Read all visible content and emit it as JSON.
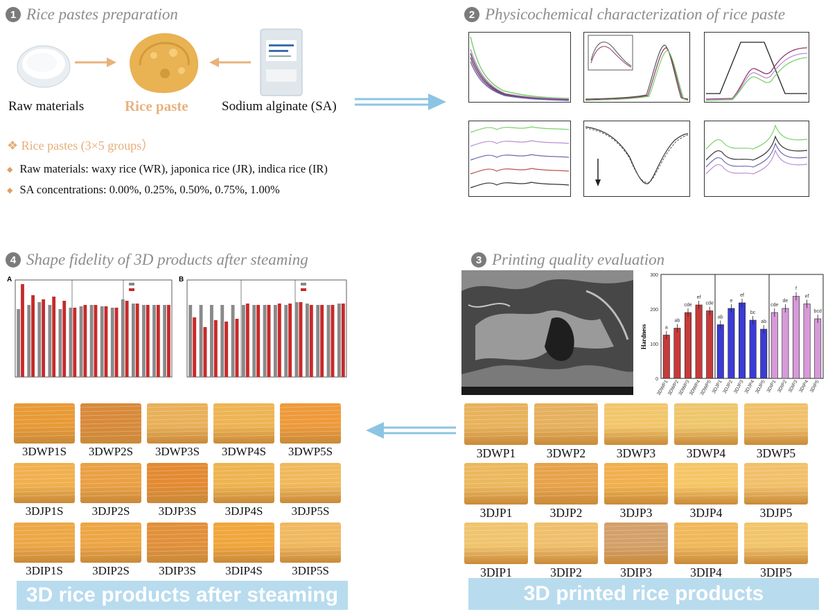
{
  "sections": {
    "s1": {
      "num": "1",
      "title": "Rice pastes preparation"
    },
    "s2": {
      "num": "2",
      "title": "Physicochemical characterization of rice paste"
    },
    "s3": {
      "num": "3",
      "title": "Printing quality evaluation"
    },
    "s4": {
      "num": "4",
      "title": "Shape fidelity of 3D products after steaming"
    }
  },
  "prep": {
    "raw_materials": "Raw materials",
    "rice_paste": "Rice paste",
    "sodium_alginate": "Sodium alginate (SA)",
    "groups_heading": "❖ Rice pastes (3×5 groups）",
    "bullet1": "Raw materials: waxy rice (WR), japonica rice (JR), indica rice (IR)",
    "bullet2": "SA concentrations: 0.00%, 0.25%, 0.50%, 0.75%, 1.00%",
    "colors": {
      "arrow": "#e8b27a",
      "rice_paste_text": "#e9b27e",
      "bullet": "#e0a060"
    }
  },
  "banners": {
    "steamed": "3D rice products after steaming",
    "printed": "3D printed rice products"
  },
  "printed_products": {
    "rows": [
      [
        "3DWP1",
        "3DWP2",
        "3DWP3",
        "3DWP4",
        "3DWP5"
      ],
      [
        "3DJP1",
        "3DJP2",
        "3DJP3",
        "3DJP4",
        "3DJP5"
      ],
      [
        "3DIP1",
        "3DIP2",
        "3DIP3",
        "3DIP4",
        "3DIP5"
      ]
    ]
  },
  "steamed_products": {
    "rows": [
      [
        "3DWP1S",
        "3DWP2S",
        "3DWP3S",
        "3DWP4S",
        "3DWP5S"
      ],
      [
        "3DJP1S",
        "3DJP2S",
        "3DJP3S",
        "3DJP4S",
        "3DJP5S"
      ],
      [
        "3DIP1S",
        "3DIP2S",
        "3DIP3S",
        "3DIP4S",
        "3DIP5S"
      ]
    ]
  },
  "chart_data": [
    {
      "type": "bar",
      "ylabel": "Hardness",
      "ylim": [
        0,
        300
      ],
      "yticks": [
        0,
        100,
        200,
        300
      ],
      "categories": [
        "3DWP1",
        "3DWP2",
        "3DWP3",
        "3DWP4",
        "3DWP5",
        "3DJP1",
        "3DJP2",
        "3DJP3",
        "3DJP4",
        "3DJP5",
        "3DIP1",
        "3DIP2",
        "3DIP3",
        "3DIP4",
        "3DIP5"
      ],
      "values": [
        125,
        145,
        190,
        212,
        195,
        155,
        202,
        218,
        168,
        142,
        190,
        202,
        237,
        215,
        172
      ],
      "labels": [
        "a",
        "ab",
        "cde",
        "ef",
        "cde",
        "ab",
        "e",
        "ef",
        "bc",
        "ab",
        "cde",
        "de",
        "f",
        "ef",
        "bcd"
      ],
      "colors": [
        "#c73a3a",
        "#c73a3a",
        "#c73a3a",
        "#c73a3a",
        "#c73a3a",
        "#3b3bd6",
        "#3b3bd6",
        "#3b3bd6",
        "#3b3bd6",
        "#3b3bd6",
        "#d79ad9",
        "#d79ad9",
        "#d79ad9",
        "#d79ad9",
        "#d79ad9"
      ]
    }
  ]
}
